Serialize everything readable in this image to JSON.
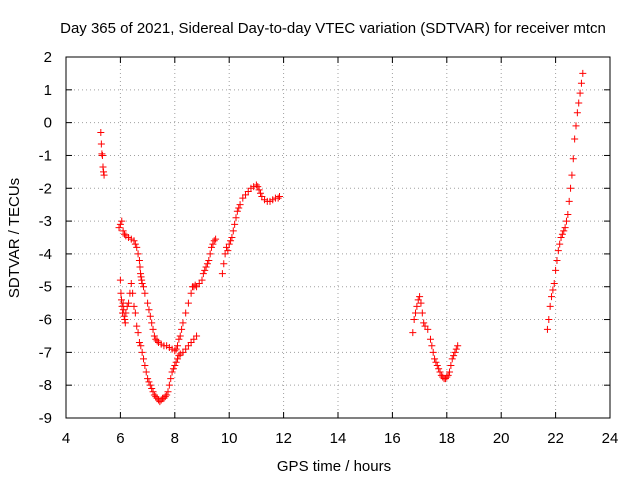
{
  "chart_data": {
    "type": "scatter",
    "title": "Day 365 of 2021, Sidereal Day-to-day VTEC variation (SDTVAR) for receiver mtcn",
    "xlabel": "GPS time / hours",
    "ylabel": "SDTVAR / TECUs",
    "xlim": [
      4,
      24
    ],
    "ylim": [
      -9,
      2
    ],
    "x_ticks": [
      "4",
      "6",
      "8",
      "10",
      "12",
      "14",
      "16",
      "18",
      "20",
      "22",
      "24"
    ],
    "y_ticks": [
      "-9",
      "-8",
      "-7",
      "-6",
      "-5",
      "-4",
      "-3",
      "-2",
      "-1",
      "0",
      "1",
      "2"
    ],
    "grid": true,
    "legend": "none",
    "marker": "+",
    "marker_color": "#ff0000",
    "series": [
      {
        "x": [
          5.28,
          5.3,
          5.32,
          5.34,
          5.36,
          5.38,
          5.4
        ],
        "y": [
          -0.3,
          -0.65,
          -0.95,
          -1.0,
          -1.35,
          -1.5,
          -1.6
        ]
      },
      {
        "x": [
          5.95,
          6.0,
          6.05,
          6.1,
          6.15,
          6.2,
          6.3,
          6.4,
          6.5,
          6.55,
          6.6,
          6.65,
          6.7,
          6.72,
          6.74,
          6.76,
          6.78,
          6.8,
          6.85,
          6.9,
          7.0,
          7.05,
          7.1,
          7.15,
          7.2,
          7.25,
          7.3,
          7.35,
          7.4,
          7.5,
          7.6,
          7.7,
          7.8,
          7.9,
          8.0,
          8.05,
          8.1,
          8.15,
          8.2,
          8.25,
          8.3,
          8.4,
          8.5,
          8.6,
          8.65,
          8.7,
          8.75,
          8.8,
          8.9,
          9.0,
          9.05,
          9.1,
          9.15,
          9.2,
          9.25,
          9.3,
          9.35,
          9.4,
          9.45,
          9.5
        ],
        "y": [
          -3.2,
          -3.1,
          -3.0,
          -3.3,
          -3.4,
          -3.45,
          -3.5,
          -3.55,
          -3.6,
          -3.7,
          -3.8,
          -4.0,
          -4.2,
          -4.4,
          -4.6,
          -4.7,
          -4.8,
          -4.9,
          -5.0,
          -5.2,
          -5.5,
          -5.7,
          -5.9,
          -6.1,
          -6.3,
          -6.5,
          -6.6,
          -6.65,
          -6.7,
          -6.75,
          -6.8,
          -6.8,
          -6.85,
          -6.9,
          -6.95,
          -6.9,
          -6.8,
          -6.6,
          -6.5,
          -6.3,
          -6.1,
          -5.8,
          -5.5,
          -5.2,
          -5.0,
          -5.0,
          -4.95,
          -5.0,
          -4.9,
          -4.8,
          -4.6,
          -4.5,
          -4.4,
          -4.3,
          -4.2,
          -4.0,
          -3.8,
          -3.7,
          -3.6,
          -3.55
        ]
      },
      {
        "x": [
          6.0,
          6.02,
          6.04,
          6.06,
          6.08,
          6.1,
          6.12,
          6.14,
          6.16,
          6.18,
          6.2,
          6.25,
          6.3,
          6.35,
          6.4,
          6.45,
          6.5,
          6.55,
          6.6,
          6.65,
          6.7,
          6.75,
          6.8,
          6.85,
          6.9,
          6.95,
          7.0,
          7.05,
          7.1,
          7.15,
          7.2,
          7.25,
          7.3,
          7.35,
          7.4,
          7.45,
          7.5,
          7.55,
          7.6,
          7.65,
          7.7,
          7.75,
          7.8,
          7.85,
          7.9,
          7.95,
          8.0,
          8.05,
          8.1,
          8.15,
          8.2,
          8.3,
          8.4,
          8.5,
          8.6,
          8.7,
          8.8
        ],
        "y": [
          -4.8,
          -5.2,
          -5.4,
          -5.6,
          -5.8,
          -5.5,
          -5.7,
          -5.9,
          -6.0,
          -6.1,
          -5.8,
          -5.6,
          -5.5,
          -5.2,
          -4.9,
          -5.2,
          -5.6,
          -5.8,
          -6.2,
          -6.4,
          -6.7,
          -6.8,
          -7.0,
          -7.2,
          -7.4,
          -7.6,
          -7.8,
          -7.9,
          -8.0,
          -8.1,
          -8.2,
          -8.3,
          -8.35,
          -8.4,
          -8.45,
          -8.5,
          -8.45,
          -8.4,
          -8.4,
          -8.35,
          -8.3,
          -8.2,
          -8.0,
          -7.8,
          -7.6,
          -7.5,
          -7.4,
          -7.3,
          -7.2,
          -7.1,
          -7.05,
          -7.0,
          -6.9,
          -6.8,
          -6.7,
          -6.6,
          -6.5
        ]
      },
      {
        "x": [
          9.75,
          9.8,
          9.85,
          9.9,
          9.95,
          10.0,
          10.05,
          10.1,
          10.15,
          10.2,
          10.25,
          10.3,
          10.35,
          10.4,
          10.5,
          10.6,
          10.7,
          10.8,
          10.9,
          11.0,
          11.05,
          11.1,
          11.15,
          11.2,
          11.3,
          11.4,
          11.5,
          11.6,
          11.7,
          11.8,
          11.85
        ],
        "y": [
          -4.6,
          -4.3,
          -4.0,
          -3.8,
          -3.9,
          -3.7,
          -3.6,
          -3.5,
          -3.3,
          -3.1,
          -2.9,
          -2.7,
          -2.6,
          -2.5,
          -2.3,
          -2.2,
          -2.1,
          -2.0,
          -1.95,
          -1.9,
          -1.95,
          -2.05,
          -2.15,
          -2.25,
          -2.35,
          -2.4,
          -2.4,
          -2.35,
          -2.3,
          -2.3,
          -2.25
        ]
      },
      {
        "x": [
          16.75,
          16.8,
          16.85,
          16.9,
          16.95,
          17.0,
          17.05,
          17.1,
          17.15,
          17.2,
          17.3,
          17.4,
          17.45,
          17.5,
          17.55,
          17.6,
          17.65,
          17.7,
          17.75,
          17.8,
          17.85,
          17.9,
          17.95,
          18.0,
          18.05,
          18.1,
          18.15,
          18.2,
          18.25,
          18.3,
          18.35,
          18.4
        ],
        "y": [
          -6.4,
          -6.0,
          -5.8,
          -5.6,
          -5.4,
          -5.3,
          -5.5,
          -5.8,
          -6.1,
          -6.2,
          -6.3,
          -6.6,
          -6.8,
          -7.0,
          -7.2,
          -7.3,
          -7.4,
          -7.5,
          -7.6,
          -7.7,
          -7.75,
          -7.8,
          -7.8,
          -7.75,
          -7.7,
          -7.6,
          -7.4,
          -7.2,
          -7.1,
          -7.0,
          -6.9,
          -6.8
        ]
      },
      {
        "x": [
          21.7,
          21.75,
          21.8,
          21.85,
          21.9,
          21.95,
          22.0,
          22.05,
          22.1,
          22.15,
          22.2,
          22.25,
          22.3,
          22.35,
          22.4,
          22.45,
          22.5,
          22.55,
          22.6,
          22.65,
          22.7,
          22.75,
          22.8,
          22.85,
          22.9,
          22.95,
          23.0
        ],
        "y": [
          -6.3,
          -6.0,
          -5.6,
          -5.3,
          -5.1,
          -4.9,
          -4.5,
          -4.2,
          -3.9,
          -3.7,
          -3.5,
          -3.4,
          -3.3,
          -3.2,
          -3.0,
          -2.8,
          -2.4,
          -2.0,
          -1.6,
          -1.1,
          -0.5,
          -0.1,
          0.3,
          0.6,
          0.9,
          1.2,
          1.5
        ]
      }
    ]
  }
}
